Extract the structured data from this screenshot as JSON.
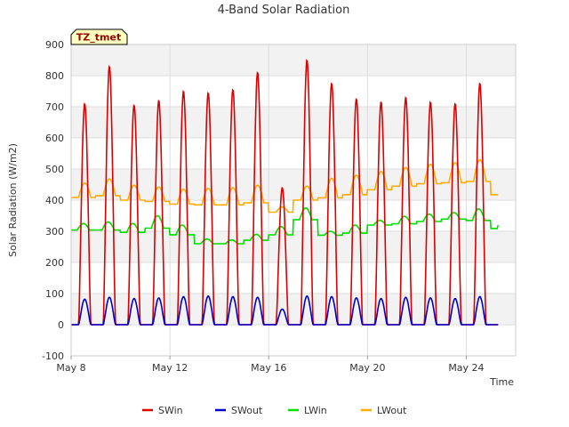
{
  "chart_data": {
    "type": "line",
    "title": "4-Band Solar Radiation",
    "xlabel": "Time",
    "ylabel": "Solar Radiation (W/m2)",
    "xlim": [
      "2024-05-08",
      "2024-05-26"
    ],
    "ylim": [
      -100,
      900
    ],
    "yticks": [
      -100,
      0,
      100,
      200,
      300,
      400,
      500,
      600,
      700,
      800,
      900
    ],
    "xticks": [
      {
        "date": "2024-05-08",
        "label": "May 8"
      },
      {
        "date": "2024-05-12",
        "label": "May 12"
      },
      {
        "date": "2024-05-16",
        "label": "May 16"
      },
      {
        "date": "2024-05-20",
        "label": "May 20"
      },
      {
        "date": "2024-05-24",
        "label": "May 24"
      }
    ],
    "grid": true,
    "legend": "bottom",
    "annotation": "TZ_tmet",
    "series": [
      {
        "name": "SWin",
        "color": "#dd0000",
        "daily_peaks": [
          {
            "date": "2024-05-08",
            "peak": 710
          },
          {
            "date": "2024-05-09",
            "peak": 830
          },
          {
            "date": "2024-05-10",
            "peak": 705
          },
          {
            "date": "2024-05-11",
            "peak": 720
          },
          {
            "date": "2024-05-12",
            "peak": 750
          },
          {
            "date": "2024-05-13",
            "peak": 745
          },
          {
            "date": "2024-05-14",
            "peak": 755
          },
          {
            "date": "2024-05-15",
            "peak": 810
          },
          {
            "date": "2024-05-16",
            "peak": 440
          },
          {
            "date": "2024-05-17",
            "peak": 850
          },
          {
            "date": "2024-05-18",
            "peak": 775
          },
          {
            "date": "2024-05-19",
            "peak": 725
          },
          {
            "date": "2024-05-20",
            "peak": 715
          },
          {
            "date": "2024-05-21",
            "peak": 730
          },
          {
            "date": "2024-05-22",
            "peak": 715
          },
          {
            "date": "2024-05-23",
            "peak": 710
          },
          {
            "date": "2024-05-24",
            "peak": 775
          }
        ]
      },
      {
        "name": "SWout",
        "color": "#0000cc",
        "daily_peaks": [
          {
            "date": "2024-05-08",
            "peak": 82
          },
          {
            "date": "2024-05-09",
            "peak": 88
          },
          {
            "date": "2024-05-10",
            "peak": 84
          },
          {
            "date": "2024-05-11",
            "peak": 86
          },
          {
            "date": "2024-05-12",
            "peak": 90
          },
          {
            "date": "2024-05-13",
            "peak": 92
          },
          {
            "date": "2024-05-14",
            "peak": 90
          },
          {
            "date": "2024-05-15",
            "peak": 88
          },
          {
            "date": "2024-05-16",
            "peak": 50
          },
          {
            "date": "2024-05-17",
            "peak": 92
          },
          {
            "date": "2024-05-18",
            "peak": 90
          },
          {
            "date": "2024-05-19",
            "peak": 86
          },
          {
            "date": "2024-05-20",
            "peak": 84
          },
          {
            "date": "2024-05-21",
            "peak": 88
          },
          {
            "date": "2024-05-22",
            "peak": 86
          },
          {
            "date": "2024-05-23",
            "peak": 84
          },
          {
            "date": "2024-05-24",
            "peak": 90
          }
        ]
      },
      {
        "name": "LWin",
        "color": "#00dd00",
        "daily": [
          {
            "date": "2024-05-08",
            "min": 283,
            "max": 325
          },
          {
            "date": "2024-05-09",
            "min": 278,
            "max": 330
          },
          {
            "date": "2024-05-10",
            "min": 268,
            "max": 325
          },
          {
            "date": "2024-05-11",
            "min": 270,
            "max": 350
          },
          {
            "date": "2024-05-12",
            "min": 258,
            "max": 320
          },
          {
            "date": "2024-05-13",
            "min": 245,
            "max": 275
          },
          {
            "date": "2024-05-14",
            "min": 248,
            "max": 272
          },
          {
            "date": "2024-05-15",
            "min": 252,
            "max": 290
          },
          {
            "date": "2024-05-16",
            "min": 262,
            "max": 315
          },
          {
            "date": "2024-05-17",
            "min": 300,
            "max": 375
          },
          {
            "date": "2024-05-18",
            "min": 275,
            "max": 300
          },
          {
            "date": "2024-05-19",
            "min": 268,
            "max": 320
          },
          {
            "date": "2024-05-20",
            "min": 305,
            "max": 335
          },
          {
            "date": "2024-05-21",
            "min": 300,
            "max": 348
          },
          {
            "date": "2024-05-22",
            "min": 308,
            "max": 355
          },
          {
            "date": "2024-05-23",
            "min": 318,
            "max": 360
          },
          {
            "date": "2024-05-24",
            "min": 298,
            "max": 372
          },
          {
            "date": "2024-05-25",
            "min": 268,
            "max": 350
          }
        ]
      },
      {
        "name": "LWout",
        "color": "#ffaa00",
        "daily": [
          {
            "date": "2024-05-08",
            "min": 362,
            "max": 455
          },
          {
            "date": "2024-05-09",
            "min": 360,
            "max": 468
          },
          {
            "date": "2024-05-10",
            "min": 352,
            "max": 448
          },
          {
            "date": "2024-05-11",
            "min": 350,
            "max": 442
          },
          {
            "date": "2024-05-12",
            "min": 340,
            "max": 435
          },
          {
            "date": "2024-05-13",
            "min": 332,
            "max": 438
          },
          {
            "date": "2024-05-14",
            "min": 330,
            "max": 440
          },
          {
            "date": "2024-05-15",
            "min": 335,
            "max": 448
          },
          {
            "date": "2024-05-16",
            "min": 345,
            "max": 378
          },
          {
            "date": "2024-05-17",
            "min": 355,
            "max": 445
          },
          {
            "date": "2024-05-18",
            "min": 345,
            "max": 470
          },
          {
            "date": "2024-05-19",
            "min": 355,
            "max": 480
          },
          {
            "date": "2024-05-20",
            "min": 375,
            "max": 492
          },
          {
            "date": "2024-05-21",
            "min": 385,
            "max": 505
          },
          {
            "date": "2024-05-22",
            "min": 390,
            "max": 515
          },
          {
            "date": "2024-05-23",
            "min": 392,
            "max": 520
          },
          {
            "date": "2024-05-24",
            "min": 390,
            "max": 530
          },
          {
            "date": "2024-05-25",
            "min": 355,
            "max": 480
          }
        ]
      }
    ]
  }
}
